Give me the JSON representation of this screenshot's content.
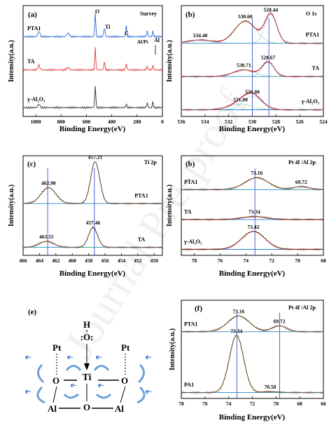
{
  "watermark": "Journal Pre-proof",
  "chart_data": [
    {
      "type": "line",
      "panel": "(a)",
      "title": "Survey",
      "xlabel": "Binding Energy(eV)",
      "ylabel": "Intensity(a.u.)",
      "xlim": [
        1100,
        0
      ],
      "xticks": [
        1000,
        800,
        600,
        400,
        200,
        0
      ],
      "annotations": [
        "O",
        "Ti",
        "C",
        "Al/Pt",
        "Al"
      ],
      "series": [
        {
          "name": "PTA1",
          "color": "#2f6fd6",
          "offset": 0.72,
          "peaks": [
            [
              975,
              0.05,
              8
            ],
            [
              745,
              0.03,
              10
            ],
            [
              530,
              0.22,
              4
            ],
            [
              458,
              0.08,
              5
            ],
            [
              285,
              0.1,
              4
            ],
            [
              120,
              0.05,
              5
            ],
            [
              75,
              0.05,
              4
            ]
          ]
        },
        {
          "name": "TA",
          "color": "#e23b3b",
          "offset": 0.42,
          "peaks": [
            [
              975,
              0.04,
              8
            ],
            [
              745,
              0.02,
              10
            ],
            [
              530,
              0.2,
              4
            ],
            [
              458,
              0.07,
              5
            ],
            [
              285,
              0.06,
              4
            ],
            [
              120,
              0.03,
              5
            ],
            [
              75,
              0.04,
              4
            ]
          ]
        },
        {
          "name": "γ-Al2O3",
          "color": "#333333",
          "offset": 0.08,
          "peaks": [
            [
              975,
              0.03,
              8
            ],
            [
              530,
              0.2,
              4
            ],
            [
              285,
              0.03,
              4
            ],
            [
              120,
              0.04,
              5
            ],
            [
              75,
              0.05,
              4
            ]
          ]
        }
      ]
    },
    {
      "type": "line",
      "panel": "(b)",
      "title": "O 1s",
      "xlabel": "Binding Energy(eV)",
      "ylabel": "Intensity(a.u.)",
      "xlim": [
        536,
        524
      ],
      "xticks": [
        536,
        534,
        532,
        530,
        528,
        526,
        524
      ],
      "vlines": [
        530.0,
        528.6
      ],
      "series": [
        {
          "name": "PTA1",
          "offset": 0.66,
          "peaks": [
            [
              530.6,
              0.2,
              0.9
            ],
            [
              528.44,
              0.26,
              0.5
            ],
            [
              534.4,
              0.03,
              1.0
            ]
          ],
          "labels": [
            "530.60",
            "528.44",
            "534.40"
          ]
        },
        {
          "name": "TA",
          "offset": 0.36,
          "peaks": [
            [
              530.71,
              0.06,
              0.9
            ],
            [
              528.67,
              0.13,
              0.5
            ]
          ],
          "labels": [
            "530.71",
            "528.67"
          ]
        },
        {
          "name": "γ-Al2O3",
          "offset": 0.06,
          "peaks": [
            [
              531.0,
              0.05,
              1.0
            ],
            [
              530.0,
              0.12,
              0.8
            ]
          ],
          "labels": [
            "531.00",
            "530.00"
          ]
        }
      ]
    },
    {
      "type": "line",
      "panel": "(c)",
      "title": "Ti 2p",
      "xlabel": "Binding Energy(eV)",
      "ylabel": "Intensity(a.u.)",
      "xlim": [
        466,
        449
      ],
      "xticks": [
        466,
        464,
        462,
        460,
        458,
        456,
        454,
        452,
        450
      ],
      "vlines": [
        463.0,
        457.3
      ],
      "series": [
        {
          "name": "PTA1",
          "offset": 0.52,
          "peaks": [
            [
              462.9,
              0.16,
              0.9
            ],
            [
              457.21,
              0.42,
              0.55
            ]
          ],
          "labels": [
            "462.90",
            "457.21"
          ]
        },
        {
          "name": "TA",
          "offset": 0.08,
          "peaks": [
            [
              463.15,
              0.06,
              0.9
            ],
            [
              457.46,
              0.2,
              0.55
            ]
          ],
          "labels": [
            "463.15",
            "457.46"
          ]
        }
      ]
    },
    {
      "type": "line",
      "panel": "(b)",
      "title": "Pt 4f /Al 2p",
      "xlabel": "Binding Energy(eV)",
      "ylabel": "Intensity(a.u.)",
      "xlim": [
        79,
        68
      ],
      "xticks": [
        78,
        76,
        74,
        72,
        70,
        68
      ],
      "vlines": [
        73.3
      ],
      "series": [
        {
          "name": "PTA1",
          "offset": 0.66,
          "peaks": [
            [
              73.16,
              0.12,
              0.9
            ],
            [
              69.72,
              0.03,
              0.6
            ]
          ],
          "labels": [
            "73.16",
            "69.72"
          ]
        },
        {
          "name": "TA",
          "offset": 0.36,
          "peaks": [
            [
              73.34,
              0.03,
              0.9
            ]
          ],
          "labels": [
            "73.34"
          ]
        },
        {
          "name": "γ-Al2O3",
          "offset": 0.06,
          "peaks": [
            [
              73.42,
              0.18,
              0.9
            ]
          ],
          "labels": [
            "73.42"
          ]
        }
      ]
    },
    {
      "type": "line",
      "panel": "(f)",
      "title": "Pt 4f /Al 2p",
      "xlabel": "Binding Energy(eV)",
      "ylabel": "Intensity(a.u.)",
      "xlim": [
        78,
        66
      ],
      "xticks": [
        78,
        76,
        74,
        72,
        70,
        68,
        66
      ],
      "vlines": [
        73.3,
        69.7
      ],
      "series": [
        {
          "name": "PTA1",
          "offset": 0.68,
          "peaks": [
            [
              73.16,
              0.16,
              0.9
            ],
            [
              69.72,
              0.06,
              0.6
            ]
          ],
          "labels": [
            "73.16",
            "69.72"
          ]
        },
        {
          "name": "PA1",
          "offset": 0.06,
          "peaks": [
            [
              73.34,
              0.58,
              0.6
            ],
            [
              70.5,
              0.01,
              0.6
            ]
          ],
          "labels": [
            "73.34",
            "70.50"
          ]
        }
      ]
    }
  ],
  "diagram": {
    "panel": "(e)",
    "atoms": {
      "h": "H",
      "o_top": ":O:",
      "ti": "Ti",
      "pt": "Pt",
      "o": "O",
      "al": "Al"
    },
    "electron": "e-"
  }
}
